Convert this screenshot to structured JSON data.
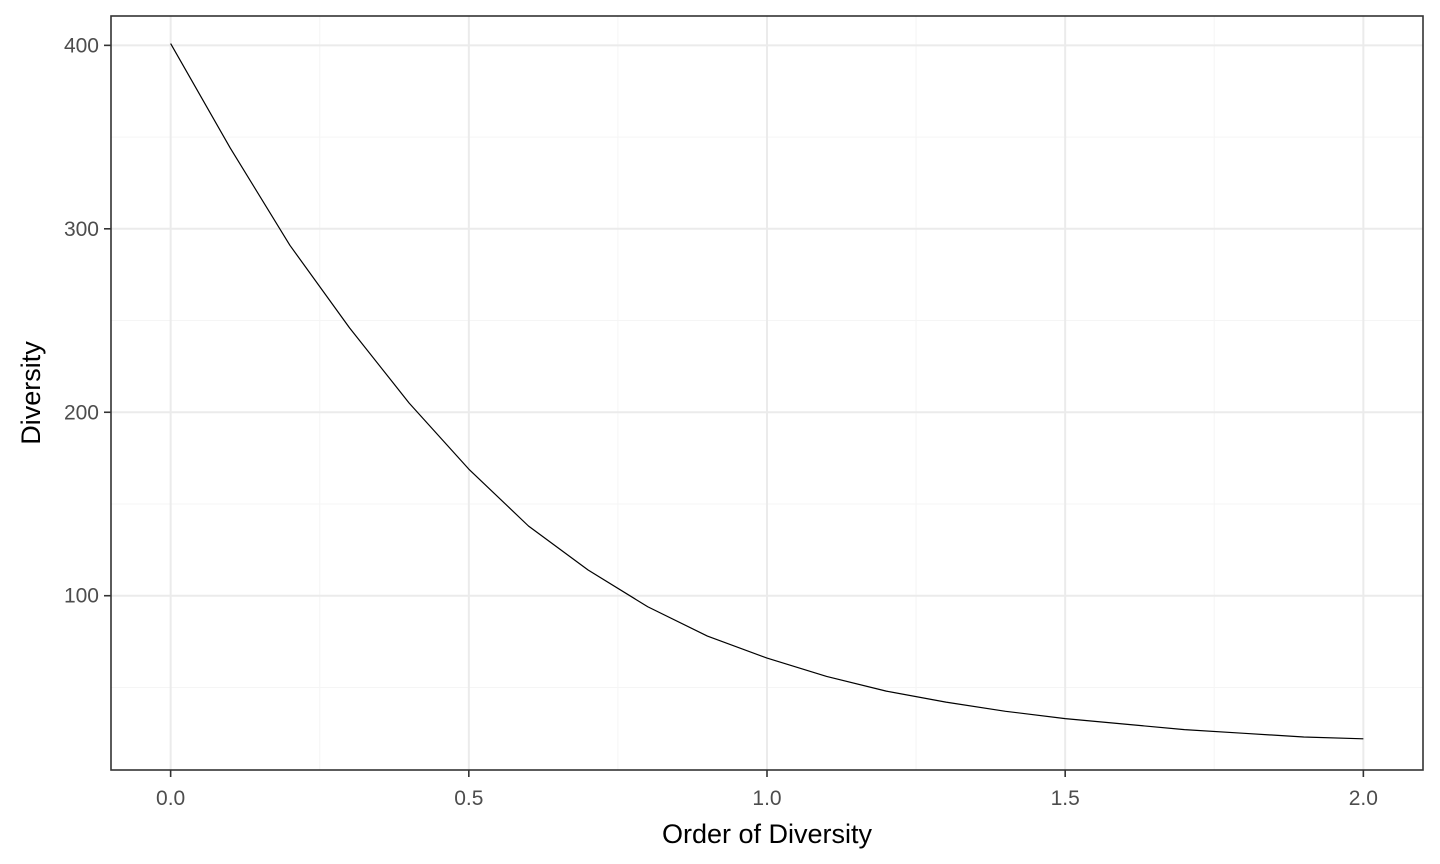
{
  "chart_data": {
    "type": "line",
    "title": "",
    "xlabel": "Order of Diversity",
    "ylabel": "Diversity",
    "xlim": [
      -0.1,
      2.1
    ],
    "ylim": [
      5,
      416
    ],
    "x_ticks": [
      0.0,
      0.5,
      1.0,
      1.5,
      2.0
    ],
    "x_tick_labels": [
      "0.0",
      "0.5",
      "1.0",
      "1.5",
      "2.0"
    ],
    "y_ticks": [
      100,
      200,
      300,
      400
    ],
    "y_tick_labels": [
      "100",
      "200",
      "300",
      "400"
    ],
    "grid": true,
    "legend": "none",
    "colors": {
      "line": "#000000",
      "panel_border": "#333333",
      "grid_major": "#ebebeb",
      "grid_minor": "#f5f5f5",
      "tick_label": "#4d4d4d"
    },
    "series": [
      {
        "x": [
          0.0,
          0.1,
          0.2,
          0.3,
          0.4,
          0.5,
          0.6,
          0.7,
          0.8,
          0.9,
          1.0,
          1.1,
          1.2,
          1.3,
          1.4,
          1.5,
          1.6,
          1.7,
          1.8,
          1.9,
          2.0
        ],
        "values": [
          401,
          344,
          291,
          246,
          205,
          169,
          138,
          114,
          94,
          78,
          66,
          56,
          48,
          42,
          37,
          33,
          30,
          27,
          25,
          23,
          22
        ]
      }
    ]
  }
}
